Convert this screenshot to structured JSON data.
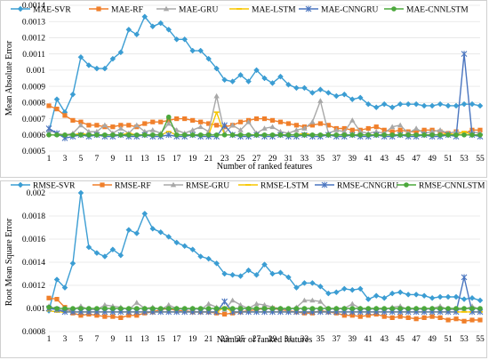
{
  "colors": {
    "SVR": "#3b9dd3",
    "RF": "#f07f2a",
    "GRU": "#a8a8a8",
    "LSTM": "#f7c600",
    "CNNGRU": "#4a75bf",
    "CNNLSTM": "#4ca83c"
  },
  "chart_data": [
    {
      "type": "line",
      "xlabel": "Number of ranked features",
      "ylabel": "Mean Absolute Error",
      "ylim": [
        0.0005,
        0.0014
      ],
      "yticks": [
        "0.0005",
        "0.0006",
        "0.0007",
        "0.0008",
        "0.0009",
        "0.001",
        "0.0011",
        "0.0012",
        "0.0013",
        "0.0014"
      ],
      "xtick_labels": [
        "1",
        "3",
        "5",
        "7",
        "9",
        "11",
        "13",
        "15",
        "17",
        "19",
        "21",
        "23",
        "25",
        "27",
        "29",
        "31",
        "33",
        "35",
        "37",
        "39",
        "41",
        "43",
        "45",
        "47",
        "49",
        "51",
        "53",
        "55"
      ],
      "grid": true,
      "legend": "top",
      "x": [
        1,
        2,
        3,
        4,
        5,
        6,
        7,
        8,
        9,
        10,
        11,
        12,
        13,
        14,
        15,
        16,
        17,
        18,
        19,
        20,
        21,
        22,
        23,
        24,
        25,
        26,
        27,
        28,
        29,
        30,
        31,
        32,
        33,
        34,
        35,
        36,
        37,
        38,
        39,
        40,
        41,
        42,
        43,
        44,
        45,
        46,
        47,
        48,
        49,
        50,
        51,
        52,
        53,
        54,
        55
      ],
      "series": [
        {
          "name": "MAE-SVR",
          "color_key": "SVR",
          "marker": "diamond",
          "values": [
            0.00062,
            0.00082,
            0.00074,
            0.00085,
            0.00108,
            0.00103,
            0.00101,
            0.00101,
            0.00107,
            0.00111,
            0.00125,
            0.00122,
            0.00133,
            0.00127,
            0.00129,
            0.00125,
            0.00119,
            0.00119,
            0.00112,
            0.00112,
            0.00107,
            0.00101,
            0.00094,
            0.00093,
            0.00097,
            0.00093,
            0.001,
            0.00095,
            0.00092,
            0.00096,
            0.00091,
            0.00089,
            0.00089,
            0.00086,
            0.00088,
            0.00086,
            0.00084,
            0.00085,
            0.00082,
            0.00083,
            0.00079,
            0.00077,
            0.00079,
            0.00077,
            0.00079,
            0.00079,
            0.00079,
            0.00078,
            0.00078,
            0.00079,
            0.00078,
            0.00078,
            0.00079,
            0.00079,
            0.00078
          ]
        },
        {
          "name": "MAE-RF",
          "color_key": "RF",
          "marker": "square",
          "values": [
            0.00078,
            0.00076,
            0.00072,
            0.00069,
            0.00068,
            0.00066,
            0.00066,
            0.00065,
            0.00065,
            0.00066,
            0.00066,
            0.00065,
            0.00067,
            0.00068,
            0.00068,
            0.00069,
            0.0007,
            0.0007,
            0.00069,
            0.00068,
            0.00067,
            0.00066,
            0.00065,
            0.00066,
            0.00068,
            0.00069,
            0.0007,
            0.0007,
            0.00069,
            0.00068,
            0.00067,
            0.00066,
            0.00065,
            0.00066,
            0.00067,
            0.00066,
            0.00064,
            0.00064,
            0.00063,
            0.00063,
            0.00064,
            0.00065,
            0.00063,
            0.00062,
            0.00063,
            0.00062,
            0.00062,
            0.00063,
            0.00063,
            0.00062,
            0.00061,
            0.00062,
            0.00061,
            0.00063,
            0.00063
          ]
        },
        {
          "name": "MAE-GRU",
          "color_key": "GRU",
          "marker": "triangle",
          "values": [
            0.00063,
            0.00061,
            0.0006,
            0.00061,
            0.00066,
            0.00062,
            0.00062,
            0.00066,
            0.00061,
            0.00064,
            0.00061,
            0.00066,
            0.00062,
            0.00063,
            0.00061,
            0.00067,
            0.00063,
            0.00061,
            0.00063,
            0.00065,
            0.00062,
            0.00084,
            0.00061,
            0.00066,
            0.00063,
            0.00068,
            0.00061,
            0.00064,
            0.00065,
            0.00062,
            0.00061,
            0.00063,
            0.00064,
            0.00068,
            0.00081,
            0.00061,
            0.00063,
            0.00062,
            0.00069,
            0.00062,
            0.00061,
            0.00062,
            0.00061,
            0.00065,
            0.00066,
            0.00061,
            0.00064,
            0.00061,
            0.00062,
            0.00063,
            0.00061,
            0.00062,
            0.00061,
            0.00062,
            0.00061
          ]
        },
        {
          "name": "MAE-LSTM",
          "color_key": "LSTM",
          "marker": "dash",
          "values": [
            0.0006,
            0.0006,
            0.0006,
            0.0006,
            0.00061,
            0.0006,
            0.0006,
            0.0006,
            0.0006,
            0.0006,
            0.00061,
            0.0006,
            0.0006,
            0.0006,
            0.0006,
            0.00062,
            0.0006,
            0.0006,
            0.0006,
            0.0006,
            0.0006,
            0.00074,
            0.0006,
            0.0006,
            0.0006,
            0.0006,
            0.0006,
            0.0006,
            0.0006,
            0.0006,
            0.0006,
            0.0006,
            0.00061,
            0.0006,
            0.0006,
            0.0006,
            0.0006,
            0.0006,
            0.0006,
            0.0006,
            0.0006,
            0.0006,
            0.0006,
            0.0006,
            0.0006,
            0.0006,
            0.0006,
            0.0006,
            0.0006,
            0.0006,
            0.00061,
            0.0006,
            0.00062,
            0.0006,
            0.0006
          ]
        },
        {
          "name": "MAE-CNNGRU",
          "color_key": "CNNGRU",
          "marker": "star",
          "values": [
            0.00064,
            0.00061,
            0.00058,
            0.00059,
            0.0006,
            0.00059,
            0.0006,
            0.00059,
            0.00059,
            0.0006,
            0.00059,
            0.00059,
            0.0006,
            0.00059,
            0.00059,
            0.0006,
            0.00059,
            0.00059,
            0.0006,
            0.00059,
            0.00059,
            0.00059,
            0.00066,
            0.0006,
            0.00059,
            0.00059,
            0.0006,
            0.00059,
            0.00059,
            0.0006,
            0.00059,
            0.00059,
            0.0006,
            0.00059,
            0.00059,
            0.0006,
            0.00059,
            0.00059,
            0.0006,
            0.00059,
            0.00059,
            0.0006,
            0.00059,
            0.00059,
            0.0006,
            0.00059,
            0.00059,
            0.0006,
            0.00059,
            0.00059,
            0.0006,
            0.00059,
            0.0011,
            0.0006,
            0.00059
          ]
        },
        {
          "name": "MAE-CNNLSTM",
          "color_key": "CNNLSTM",
          "marker": "circle",
          "values": [
            0.0006,
            0.0006,
            0.0006,
            0.0006,
            0.0006,
            0.0006,
            0.0006,
            0.0006,
            0.0006,
            0.0006,
            0.0006,
            0.0006,
            0.0006,
            0.0006,
            0.0006,
            0.00071,
            0.0006,
            0.0006,
            0.0006,
            0.0006,
            0.0006,
            0.0006,
            0.0006,
            0.0006,
            0.0006,
            0.0006,
            0.0006,
            0.0006,
            0.0006,
            0.0006,
            0.0006,
            0.0006,
            0.0006,
            0.0006,
            0.0006,
            0.0006,
            0.0006,
            0.0006,
            0.0006,
            0.0006,
            0.0006,
            0.0006,
            0.0006,
            0.0006,
            0.0006,
            0.0006,
            0.0006,
            0.0006,
            0.0006,
            0.0006,
            0.0006,
            0.0006,
            0.0006,
            0.0006,
            0.0006
          ]
        }
      ]
    },
    {
      "type": "line",
      "xlabel": "Number of ranked features",
      "ylabel": "Root Mean Square Error",
      "ylim": [
        0.0008,
        0.002
      ],
      "yticks": [
        "0.0008",
        "0.001",
        "0.0012",
        "0.0014",
        "0.0016",
        "0.0018",
        "0.002"
      ],
      "xtick_labels": [
        "1",
        "3",
        "5",
        "7",
        "9",
        "11",
        "13",
        "15",
        "17",
        "19",
        "21",
        "23",
        "25",
        "27",
        "29",
        "31",
        "33",
        "35",
        "37",
        "39",
        "41",
        "43",
        "45",
        "47",
        "49",
        "51",
        "53",
        "55"
      ],
      "grid": true,
      "legend": "top",
      "x": [
        1,
        2,
        3,
        4,
        5,
        6,
        7,
        8,
        9,
        10,
        11,
        12,
        13,
        14,
        15,
        16,
        17,
        18,
        19,
        20,
        21,
        22,
        23,
        24,
        25,
        26,
        27,
        28,
        29,
        30,
        31,
        32,
        33,
        34,
        35,
        36,
        37,
        38,
        39,
        40,
        41,
        42,
        43,
        44,
        45,
        46,
        47,
        48,
        49,
        50,
        51,
        52,
        53,
        54,
        55
      ],
      "series": [
        {
          "name": "RMSE-SVR",
          "color_key": "SVR",
          "marker": "diamond",
          "values": [
            0.00098,
            0.00125,
            0.00118,
            0.00139,
            0.002,
            0.00153,
            0.00148,
            0.00145,
            0.00151,
            0.00146,
            0.00168,
            0.00165,
            0.00182,
            0.00169,
            0.00166,
            0.00162,
            0.00157,
            0.00154,
            0.00151,
            0.00145,
            0.00143,
            0.00139,
            0.0013,
            0.00129,
            0.00128,
            0.00133,
            0.00129,
            0.00138,
            0.0013,
            0.00131,
            0.00127,
            0.00118,
            0.00122,
            0.00122,
            0.00119,
            0.00113,
            0.00114,
            0.00117,
            0.00116,
            0.00117,
            0.00108,
            0.00111,
            0.00109,
            0.00113,
            0.00114,
            0.00112,
            0.00112,
            0.00111,
            0.00109,
            0.0011,
            0.0011,
            0.0011,
            0.00108,
            0.00109,
            0.00107
          ]
        },
        {
          "name": "RMSE-RF",
          "color_key": "RF",
          "marker": "square",
          "values": [
            0.00109,
            0.00108,
            0.00101,
            0.00096,
            0.00094,
            0.00095,
            0.00094,
            0.00093,
            0.00093,
            0.00092,
            0.00094,
            0.00094,
            0.00096,
            0.00097,
            0.00099,
            0.001,
            0.00098,
            0.00098,
            0.00097,
            0.00097,
            0.00097,
            0.00096,
            0.00095,
            0.00096,
            0.00097,
            0.00098,
            0.00099,
            0.001,
            0.001,
            0.00099,
            0.00098,
            0.00097,
            0.00096,
            0.00096,
            0.00098,
            0.00097,
            0.00096,
            0.00094,
            0.00094,
            0.00093,
            0.00094,
            0.00095,
            0.00093,
            0.00092,
            0.00093,
            0.00092,
            0.00091,
            0.00092,
            0.00093,
            0.00092,
            0.0009,
            0.00091,
            0.00089,
            0.0009,
            0.0009
          ]
        },
        {
          "name": "RMSE-GRU",
          "color_key": "GRU",
          "marker": "triangle",
          "values": [
            0.00102,
            0.00099,
            0.00098,
            0.00099,
            0.00102,
            0.00099,
            0.00099,
            0.00103,
            0.00102,
            0.00101,
            0.00099,
            0.00105,
            0.001,
            0.00101,
            0.00099,
            0.00103,
            0.001,
            0.00099,
            0.001,
            0.00099,
            0.00104,
            0.00101,
            0.00099,
            0.00107,
            0.00103,
            0.001,
            0.00104,
            0.00103,
            0.00101,
            0.001,
            0.00099,
            0.00101,
            0.00107,
            0.00107,
            0.00106,
            0.00099,
            0.001,
            0.001,
            0.00104,
            0.001,
            0.00099,
            0.001,
            0.00099,
            0.00101,
            0.00102,
            0.00099,
            0.001,
            0.00099,
            0.001,
            0.00102,
            0.00099,
            0.00099,
            0.00099,
            0.00102,
            0.00099
          ]
        },
        {
          "name": "RMSE-LSTM",
          "color_key": "LSTM",
          "marker": "dash",
          "values": [
            0.00098,
            0.00097,
            0.00097,
            0.00097,
            0.00097,
            0.00097,
            0.00097,
            0.00097,
            0.00097,
            0.00097,
            0.00097,
            0.00097,
            0.00097,
            0.00097,
            0.00097,
            0.00097,
            0.00097,
            0.00097,
            0.00097,
            0.00097,
            0.00097,
            0.00097,
            0.00101,
            0.00097,
            0.00097,
            0.00097,
            0.00097,
            0.00097,
            0.00097,
            0.00097,
            0.00097,
            0.00097,
            0.00097,
            0.00097,
            0.00097,
            0.00097,
            0.00097,
            0.00097,
            0.00097,
            0.00097,
            0.00097,
            0.00097,
            0.00097,
            0.00097,
            0.00097,
            0.00097,
            0.00097,
            0.00097,
            0.00097,
            0.00097,
            0.00097,
            0.00097,
            0.00097,
            0.00097,
            0.00097
          ]
        },
        {
          "name": "RMSE-CNNGRU",
          "color_key": "CNNGRU",
          "marker": "star",
          "values": [
            0.001,
            0.00099,
            0.00097,
            0.00097,
            0.00097,
            0.00097,
            0.00097,
            0.00097,
            0.00097,
            0.00097,
            0.00097,
            0.00097,
            0.00097,
            0.00097,
            0.00097,
            0.00097,
            0.00097,
            0.00097,
            0.00097,
            0.00097,
            0.00097,
            0.00097,
            0.00106,
            0.00097,
            0.00097,
            0.00097,
            0.00097,
            0.00097,
            0.00097,
            0.00097,
            0.00097,
            0.00097,
            0.00097,
            0.00097,
            0.00097,
            0.00097,
            0.00097,
            0.00097,
            0.00097,
            0.00097,
            0.00097,
            0.00097,
            0.00097,
            0.00097,
            0.00097,
            0.00097,
            0.00097,
            0.00097,
            0.00097,
            0.00097,
            0.00097,
            0.00097,
            0.00127,
            0.00097,
            0.00097
          ]
        },
        {
          "name": "RMSE-CNNLSTM",
          "color_key": "CNNLSTM",
          "marker": "circle",
          "values": [
            0.00101,
            0.001,
            0.001,
            0.001,
            0.001,
            0.001,
            0.001,
            0.001,
            0.001,
            0.001,
            0.001,
            0.001,
            0.001,
            0.001,
            0.001,
            0.001,
            0.001,
            0.001,
            0.001,
            0.001,
            0.001,
            0.001,
            0.001,
            0.001,
            0.001,
            0.001,
            0.001,
            0.001,
            0.001,
            0.001,
            0.001,
            0.001,
            0.001,
            0.001,
            0.001,
            0.001,
            0.001,
            0.001,
            0.001,
            0.001,
            0.001,
            0.001,
            0.001,
            0.001,
            0.001,
            0.001,
            0.001,
            0.001,
            0.001,
            0.001,
            0.001,
            0.001,
            0.001,
            0.001,
            0.001
          ]
        }
      ]
    }
  ]
}
